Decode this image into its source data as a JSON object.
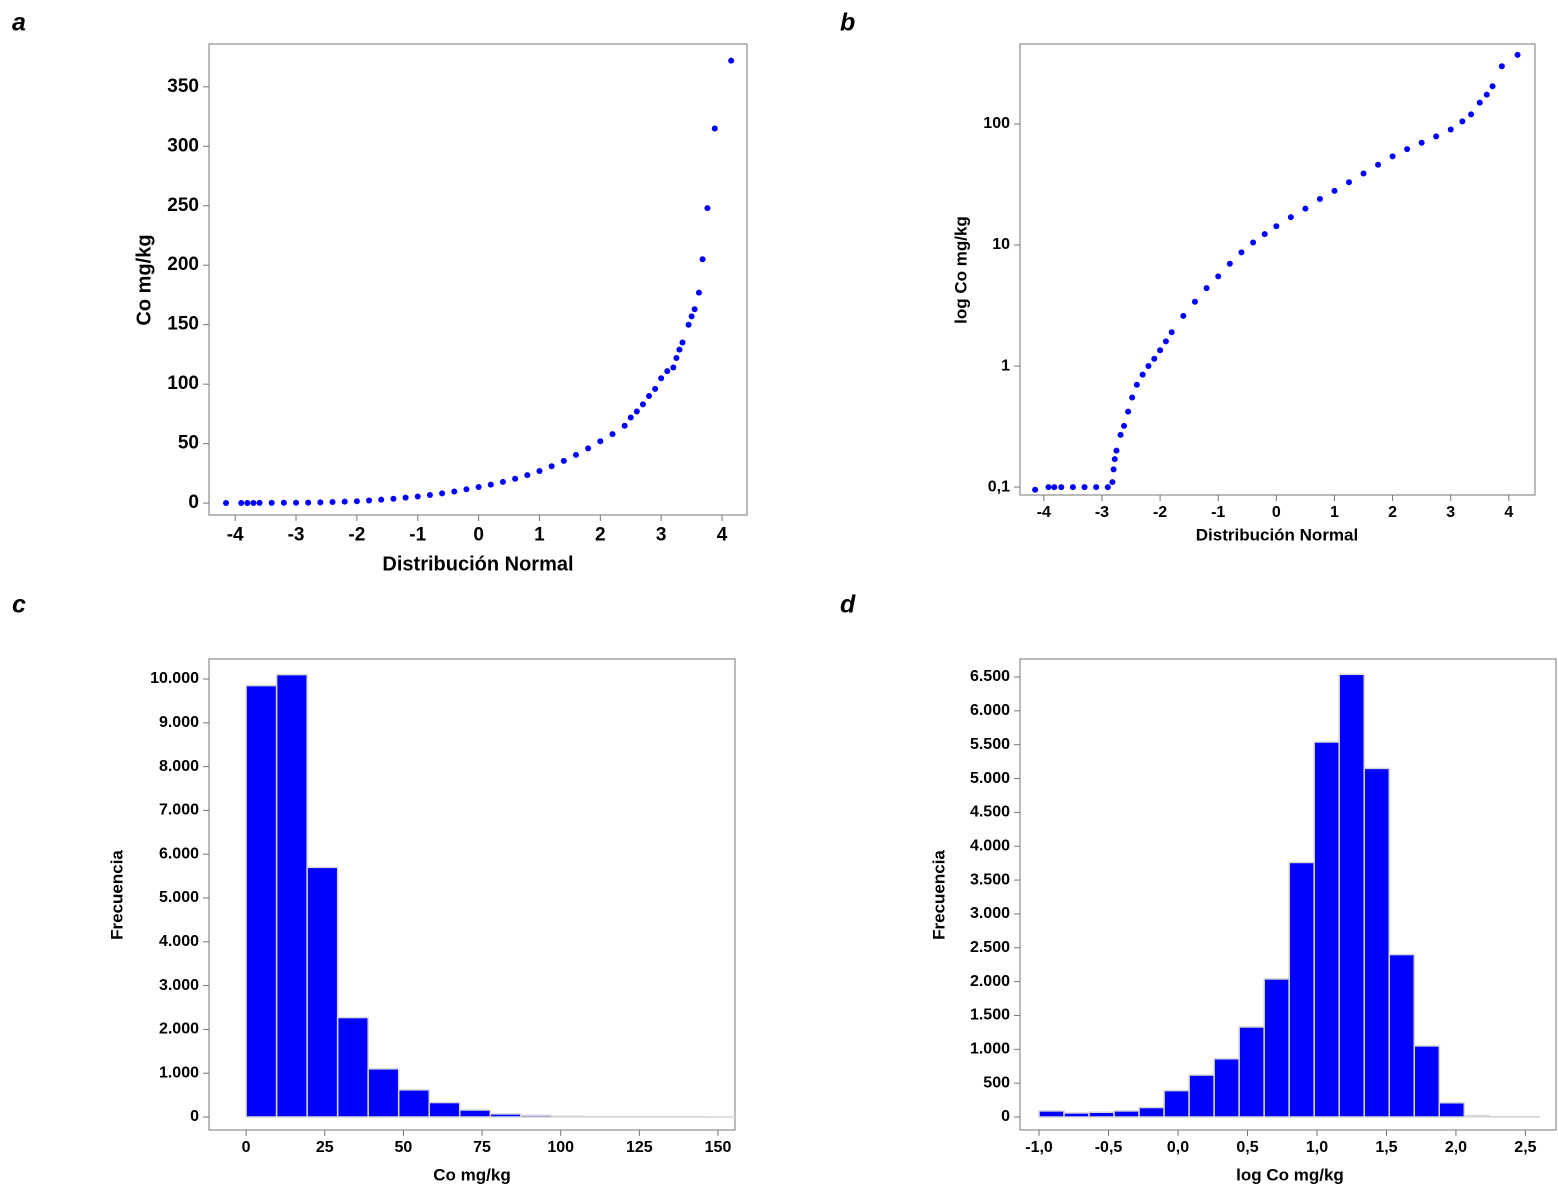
{
  "chart_data": [
    {
      "type": "scatter",
      "label": "a",
      "x_label": "Distribución Normal",
      "y_label": "Co mg/kg",
      "color": "#0000ff",
      "x": [
        -4.15,
        -3.9,
        -3.8,
        -3.7,
        -3.6,
        -3.4,
        -3.2,
        -3.0,
        -2.8,
        -2.6,
        -2.4,
        -2.2,
        -2.0,
        -1.8,
        -1.6,
        -1.4,
        -1.2,
        -1.0,
        -0.8,
        -0.6,
        -0.4,
        -0.2,
        0,
        0.2,
        0.4,
        0.6,
        0.8,
        1.0,
        1.2,
        1.4,
        1.6,
        1.8,
        2.0,
        2.2,
        2.4,
        2.5,
        2.6,
        2.7,
        2.8,
        2.9,
        3.0,
        3.1,
        3.2,
        3.25,
        3.3,
        3.35,
        3.45,
        3.5,
        3.55,
        3.62,
        3.68,
        3.76,
        3.88,
        4.15
      ],
      "values": [
        0.1,
        0.1,
        0.1,
        0.1,
        0.15,
        0.2,
        0.25,
        0.3,
        0.4,
        0.6,
        0.9,
        1.2,
        1.6,
        2.2,
        2.9,
        3.7,
        4.6,
        5.6,
        6.8,
        8.2,
        9.8,
        11.6,
        13.5,
        15.5,
        17.8,
        20.5,
        23.5,
        27,
        31,
        35.5,
        40.5,
        46,
        52,
        58,
        65,
        72,
        77,
        83,
        90,
        96,
        105,
        111,
        114,
        122,
        129,
        135,
        150,
        157,
        163,
        177,
        205,
        248,
        315,
        372
      ],
      "xlim": [
        -4.43,
        4.41
      ],
      "ylim": [
        -10,
        386
      ],
      "xticks": [
        -4,
        -3,
        -2,
        -1,
        0,
        1,
        2,
        3,
        4
      ],
      "yticks": [
        0,
        50,
        100,
        150,
        200,
        250,
        300,
        350
      ]
    },
    {
      "type": "scatter",
      "label": "b",
      "x_label": "Distribución Normal",
      "y_label": "log Co mg/kg",
      "color": "#0000ff",
      "log_y": true,
      "x": [
        -4.15,
        -3.92,
        -3.82,
        -3.7,
        -3.5,
        -3.3,
        -3.1,
        -2.9,
        -2.82,
        -2.8,
        -2.78,
        -2.75,
        -2.68,
        -2.62,
        -2.55,
        -2.48,
        -2.4,
        -2.3,
        -2.2,
        -2.1,
        -2.0,
        -1.9,
        -1.8,
        -1.6,
        -1.4,
        -1.2,
        -1.0,
        -0.8,
        -0.6,
        -0.4,
        -0.2,
        0,
        0.25,
        0.5,
        0.75,
        1.0,
        1.25,
        1.5,
        1.75,
        2.0,
        2.25,
        2.5,
        2.75,
        3.0,
        3.2,
        3.35,
        3.5,
        3.62,
        3.72,
        3.88,
        4.15
      ],
      "values": [
        0.095,
        0.1,
        0.1,
        0.1,
        0.1,
        0.1,
        0.1,
        0.1,
        0.11,
        0.14,
        0.17,
        0.2,
        0.27,
        0.32,
        0.42,
        0.55,
        0.7,
        0.85,
        1.0,
        1.15,
        1.35,
        1.6,
        1.9,
        2.6,
        3.4,
        4.4,
        5.5,
        7,
        8.7,
        10.5,
        12.3,
        14.3,
        17,
        20,
        24,
        28,
        33,
        39,
        46,
        54,
        62,
        70,
        79,
        90,
        105,
        120,
        150,
        175,
        205,
        300,
        372
      ],
      "xlim": [
        -4.41,
        4.45
      ],
      "ylim": [
        0.086,
        458
      ],
      "xticks": [
        -4,
        -3,
        -2,
        -1,
        0,
        1,
        2,
        3,
        4
      ],
      "yticks": [
        {
          "value": 0.1,
          "label": "0,1"
        },
        1,
        10,
        100
      ]
    },
    {
      "type": "histogram",
      "label": "c",
      "x_label": "Co mg/kg",
      "y_label": "Frecuencia",
      "color": "#0000ff",
      "bins": [
        0,
        9.7,
        19.4,
        29.1,
        38.8,
        48.5,
        58.2,
        67.9,
        77.6,
        87.3,
        97,
        106.7,
        116.4,
        126.1,
        135.8,
        145.5,
        155.2
      ],
      "values": [
        9850,
        10100,
        5700,
        2270,
        1100,
        620,
        330,
        160,
        70,
        40,
        20,
        10,
        8,
        5,
        5,
        3
      ],
      "xlim": [
        -11.8,
        155.4
      ],
      "ylim": [
        -297,
        10457
      ],
      "xticks": [
        0,
        25,
        50,
        75,
        100,
        125,
        150
      ],
      "yticks": [
        0,
        {
          "value": 1000,
          "label": "1.000"
        },
        {
          "value": 2000,
          "label": "2.000"
        },
        {
          "value": 3000,
          "label": "3.000"
        },
        {
          "value": 4000,
          "label": "4.000"
        },
        {
          "value": 5000,
          "label": "5.000"
        },
        {
          "value": 6000,
          "label": "6.000"
        },
        {
          "value": 7000,
          "label": "7.000"
        },
        {
          "value": 8000,
          "label": "8.000"
        },
        {
          "value": 9000,
          "label": "9.000"
        },
        {
          "value": 10000,
          "label": "10.000"
        }
      ]
    },
    {
      "type": "histogram",
      "label": "d",
      "x_label": "log Co mg/kg",
      "y_label": "Frecuencia",
      "color": "#0000ff",
      "bins": [
        -1.0,
        -0.82,
        -0.64,
        -0.46,
        -0.28,
        -0.1,
        0.08,
        0.26,
        0.44,
        0.62,
        0.8,
        0.98,
        1.16,
        1.34,
        1.52,
        1.7,
        1.88,
        2.06,
        2.24,
        2.42,
        2.6
      ],
      "values": [
        90,
        60,
        70,
        90,
        140,
        390,
        620,
        860,
        1330,
        2040,
        3760,
        5540,
        6540,
        5150,
        2400,
        1050,
        210,
        20,
        5,
        5
      ],
      "xlim": [
        -1.137,
        2.72
      ],
      "ylim": [
        -192,
        6766
      ],
      "xticks": [
        {
          "value": -1.0,
          "label": "-1,0"
        },
        {
          "value": -0.5,
          "label": "-0,5"
        },
        {
          "value": 0.0,
          "label": "0,0"
        },
        {
          "value": 0.5,
          "label": "0,5"
        },
        {
          "value": 1.0,
          "label": "1,0"
        },
        {
          "value": 1.5,
          "label": "1,5"
        },
        {
          "value": 2.0,
          "label": "2,0"
        },
        {
          "value": 2.5,
          "label": "2,5"
        }
      ],
      "yticks": [
        0,
        500,
        {
          "value": 1000,
          "label": "1.000"
        },
        {
          "value": 1500,
          "label": "1.500"
        },
        {
          "value": 2000,
          "label": "2.000"
        },
        {
          "value": 2500,
          "label": "2.500"
        },
        {
          "value": 3000,
          "label": "3.000"
        },
        {
          "value": 3500,
          "label": "3.500"
        },
        {
          "value": 4000,
          "label": "4.000"
        },
        {
          "value": 4500,
          "label": "4.500"
        },
        {
          "value": 5000,
          "label": "5.000"
        },
        {
          "value": 5500,
          "label": "5.500"
        },
        {
          "value": 6000,
          "label": "6.000"
        },
        {
          "value": 6500,
          "label": "6.500"
        }
      ]
    }
  ]
}
